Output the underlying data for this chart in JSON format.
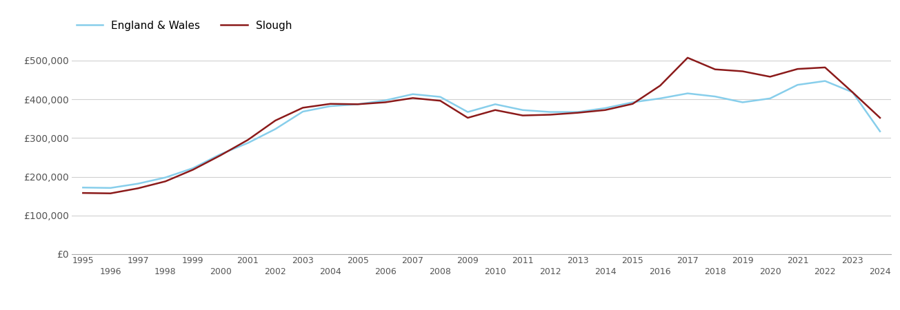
{
  "years": [
    1995,
    1996,
    1997,
    1998,
    1999,
    2000,
    2001,
    2002,
    2003,
    2004,
    2005,
    2006,
    2007,
    2008,
    2009,
    2010,
    2011,
    2012,
    2013,
    2014,
    2015,
    2016,
    2017,
    2018,
    2019,
    2020,
    2021,
    2022,
    2023,
    2024
  ],
  "slough": [
    158000,
    157000,
    170000,
    188000,
    218000,
    255000,
    295000,
    345000,
    378000,
    388000,
    387000,
    392000,
    403000,
    396000,
    352000,
    372000,
    358000,
    360000,
    365000,
    372000,
    388000,
    435000,
    507000,
    477000,
    472000,
    458000,
    478000,
    482000,
    418000,
    352000
  ],
  "england_wales": [
    172000,
    171000,
    182000,
    198000,
    222000,
    258000,
    287000,
    323000,
    368000,
    382000,
    387000,
    397000,
    413000,
    406000,
    367000,
    387000,
    372000,
    367000,
    367000,
    377000,
    392000,
    402000,
    415000,
    407000,
    392000,
    402000,
    437000,
    447000,
    418000,
    317000
  ],
  "slough_color": "#8B1A1A",
  "england_wales_color": "#87CEEB",
  "background_color": "#ffffff",
  "grid_color": "#d0d0d0",
  "ylim": [
    0,
    560000
  ],
  "yticks": [
    0,
    100000,
    200000,
    300000,
    400000,
    500000
  ],
  "ytick_labels": [
    "£0",
    "£100,000",
    "£200,000",
    "£300,000",
    "£400,000",
    "£500,000"
  ],
  "legend_slough": "Slough",
  "legend_ew": "England & Wales",
  "line_width": 1.8
}
